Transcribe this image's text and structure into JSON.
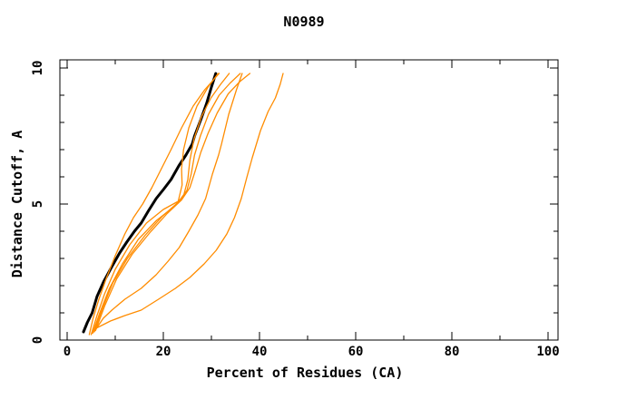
{
  "title": "N0989",
  "colors": {
    "background": "#ffffff",
    "frame": "#000000",
    "primary_curve": "#000000",
    "secondary_curve": "#ff8c00"
  },
  "chart_data": {
    "type": "line",
    "title": "N0989",
    "xlabel": "Percent of Residues (CA)",
    "ylabel": "Distance Cutoff, A",
    "xlim": [
      0,
      100
    ],
    "ylim": [
      0,
      10
    ],
    "grid": false,
    "legend": "none",
    "x_major_ticks": [
      0,
      20,
      40,
      60,
      80,
      100
    ],
    "x_minor_ticks": [
      10,
      30,
      50,
      70,
      90
    ],
    "y_major_ticks": [
      0,
      5,
      10
    ],
    "y_minor_ticks": [
      1,
      2,
      3,
      4,
      6,
      7,
      8,
      9
    ],
    "series": [
      {
        "name": "target-curve-black",
        "color": "#000000",
        "width": 3,
        "points": [
          [
            3.4,
            0.3
          ],
          [
            4.2,
            0.65
          ],
          [
            5.2,
            1.0
          ],
          [
            6.2,
            1.6
          ],
          [
            7.6,
            2.15
          ],
          [
            9.3,
            2.7
          ],
          [
            10.9,
            3.2
          ],
          [
            12.4,
            3.6
          ],
          [
            14.0,
            4.0
          ],
          [
            15.4,
            4.3
          ],
          [
            16.9,
            4.75
          ],
          [
            18.5,
            5.2
          ],
          [
            20.1,
            5.55
          ],
          [
            21.6,
            5.9
          ],
          [
            23.2,
            6.4
          ],
          [
            24.7,
            6.8
          ],
          [
            26.0,
            7.2
          ],
          [
            26.5,
            7.5
          ],
          [
            27.8,
            8.1
          ],
          [
            29.0,
            8.7
          ],
          [
            30.0,
            9.3
          ],
          [
            30.9,
            9.8
          ]
        ]
      },
      {
        "name": "model-curve-1",
        "color": "#ff8c00",
        "width": 1.3,
        "points": [
          [
            4.6,
            0.2
          ],
          [
            5.4,
            0.8
          ],
          [
            6.6,
            1.5
          ],
          [
            8.2,
            2.3
          ],
          [
            10.0,
            3.1
          ],
          [
            12.0,
            3.9
          ],
          [
            13.8,
            4.5
          ],
          [
            15.7,
            5.0
          ],
          [
            17.6,
            5.6
          ],
          [
            19.6,
            6.3
          ],
          [
            21.6,
            7.0
          ],
          [
            23.8,
            7.8
          ],
          [
            26.2,
            8.6
          ],
          [
            28.6,
            9.2
          ],
          [
            30.6,
            9.6
          ],
          [
            31.6,
            9.8
          ]
        ]
      },
      {
        "name": "model-curve-2",
        "color": "#ff8c00",
        "width": 1.3,
        "points": [
          [
            5.0,
            0.2
          ],
          [
            6.2,
            0.9
          ],
          [
            7.8,
            1.7
          ],
          [
            10.0,
            2.6
          ],
          [
            13.0,
            3.5
          ],
          [
            16.5,
            4.3
          ],
          [
            20.0,
            4.8
          ],
          [
            23.1,
            5.1
          ],
          [
            23.9,
            5.7
          ],
          [
            23.8,
            6.3
          ],
          [
            24.2,
            7.0
          ],
          [
            25.3,
            7.8
          ],
          [
            27.0,
            8.6
          ],
          [
            29.3,
            9.3
          ],
          [
            31.4,
            9.8
          ]
        ]
      },
      {
        "name": "model-curve-3",
        "color": "#ff8c00",
        "width": 1.3,
        "points": [
          [
            5.3,
            0.25
          ],
          [
            6.8,
            1.0
          ],
          [
            8.8,
            1.9
          ],
          [
            11.5,
            2.8
          ],
          [
            14.8,
            3.7
          ],
          [
            18.6,
            4.4
          ],
          [
            22.2,
            4.9
          ],
          [
            24.2,
            5.3
          ],
          [
            25.1,
            5.9
          ],
          [
            25.5,
            6.6
          ],
          [
            26.4,
            7.4
          ],
          [
            27.9,
            8.2
          ],
          [
            29.9,
            8.9
          ],
          [
            31.9,
            9.4
          ],
          [
            33.7,
            9.8
          ]
        ]
      },
      {
        "name": "model-curve-4",
        "color": "#ff8c00",
        "width": 1.3,
        "points": [
          [
            5.6,
            0.3
          ],
          [
            7.2,
            1.1
          ],
          [
            9.5,
            2.1
          ],
          [
            12.5,
            3.0
          ],
          [
            16.2,
            3.85
          ],
          [
            19.8,
            4.55
          ],
          [
            23.0,
            5.05
          ],
          [
            24.9,
            5.5
          ],
          [
            25.8,
            6.1
          ],
          [
            26.5,
            6.8
          ],
          [
            27.7,
            7.5
          ],
          [
            29.4,
            8.3
          ],
          [
            31.6,
            9.0
          ],
          [
            33.9,
            9.45
          ],
          [
            36.0,
            9.8
          ]
        ]
      },
      {
        "name": "model-curve-5",
        "color": "#ff8c00",
        "width": 1.3,
        "points": [
          [
            5.9,
            0.35
          ],
          [
            7.8,
            1.25
          ],
          [
            10.3,
            2.25
          ],
          [
            13.5,
            3.15
          ],
          [
            17.2,
            3.95
          ],
          [
            20.8,
            4.65
          ],
          [
            23.8,
            5.15
          ],
          [
            25.5,
            5.6
          ],
          [
            26.6,
            6.2
          ],
          [
            27.8,
            6.9
          ],
          [
            29.3,
            7.6
          ],
          [
            31.2,
            8.35
          ],
          [
            33.5,
            9.05
          ],
          [
            35.9,
            9.5
          ],
          [
            38.0,
            9.8
          ]
        ]
      },
      {
        "name": "model-curve-6",
        "color": "#ff8c00",
        "width": 1.3,
        "points": [
          [
            5.6,
            0.3
          ],
          [
            7.5,
            0.8
          ],
          [
            9.3,
            1.1
          ],
          [
            12.0,
            1.5
          ],
          [
            15.4,
            1.9
          ],
          [
            18.5,
            2.4
          ],
          [
            21.0,
            2.9
          ],
          [
            23.3,
            3.4
          ],
          [
            25.3,
            4.0
          ],
          [
            27.2,
            4.6
          ],
          [
            28.8,
            5.2
          ],
          [
            30.2,
            6.1
          ],
          [
            31.5,
            6.8
          ],
          [
            32.1,
            7.2
          ],
          [
            33.6,
            8.3
          ],
          [
            35.2,
            9.2
          ],
          [
            36.4,
            9.8
          ]
        ]
      },
      {
        "name": "model-curve-7",
        "color": "#ff8c00",
        "width": 1.3,
        "points": [
          [
            6.2,
            0.45
          ],
          [
            9.0,
            0.7
          ],
          [
            12.0,
            0.9
          ],
          [
            15.4,
            1.1
          ],
          [
            19.0,
            1.5
          ],
          [
            22.5,
            1.9
          ],
          [
            25.5,
            2.3
          ],
          [
            28.5,
            2.8
          ],
          [
            31.0,
            3.3
          ],
          [
            33.2,
            3.9
          ],
          [
            34.8,
            4.5
          ],
          [
            36.2,
            5.2
          ],
          [
            37.4,
            6.0
          ],
          [
            38.5,
            6.7
          ],
          [
            40.2,
            7.7
          ],
          [
            41.8,
            8.4
          ],
          [
            43.3,
            8.9
          ],
          [
            44.3,
            9.4
          ],
          [
            44.9,
            9.8
          ]
        ]
      }
    ]
  }
}
